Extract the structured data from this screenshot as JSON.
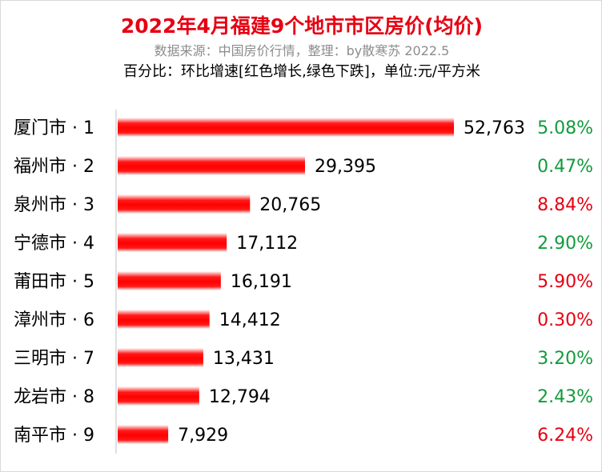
{
  "title": "2022年4月福建9个地市市区房价(均价)",
  "subtitle": "数据来源：中国房价行情，整理：by散寒苏 2022.5",
  "note": "百分比：环比增速[红色增长,绿色下跌]，单位:元/平方米",
  "colors": {
    "bar": "#ff0000",
    "increase": "#e60012",
    "decrease": "#119b3c",
    "title": "#e60012"
  },
  "chart_data": {
    "type": "bar",
    "orientation": "horizontal",
    "categories": [
      "厦门市 · 1",
      "福州市 · 2",
      "泉州市 · 3",
      "宁德市 · 4",
      "莆田市 · 5",
      "漳州市 · 6",
      "三明市 · 7",
      "龙岩市 · 8",
      "南平市 · 9"
    ],
    "values": [
      52763,
      29395,
      20765,
      17112,
      16191,
      14412,
      13431,
      12794,
      7929
    ],
    "value_labels": [
      "52,763",
      "29,395",
      "20,765",
      "17,112",
      "16,191",
      "14,412",
      "13,431",
      "12,794",
      "7,929"
    ],
    "change_labels": [
      "5.08%",
      "0.47%",
      "8.84%",
      "2.90%",
      "5.90%",
      "0.30%",
      "3.20%",
      "2.43%",
      "6.24%"
    ],
    "change_direction": [
      "decrease",
      "decrease",
      "increase",
      "decrease",
      "increase",
      "increase",
      "decrease",
      "decrease",
      "increase"
    ],
    "xlim": [
      0,
      52763
    ],
    "grid": false,
    "legend": "none"
  }
}
